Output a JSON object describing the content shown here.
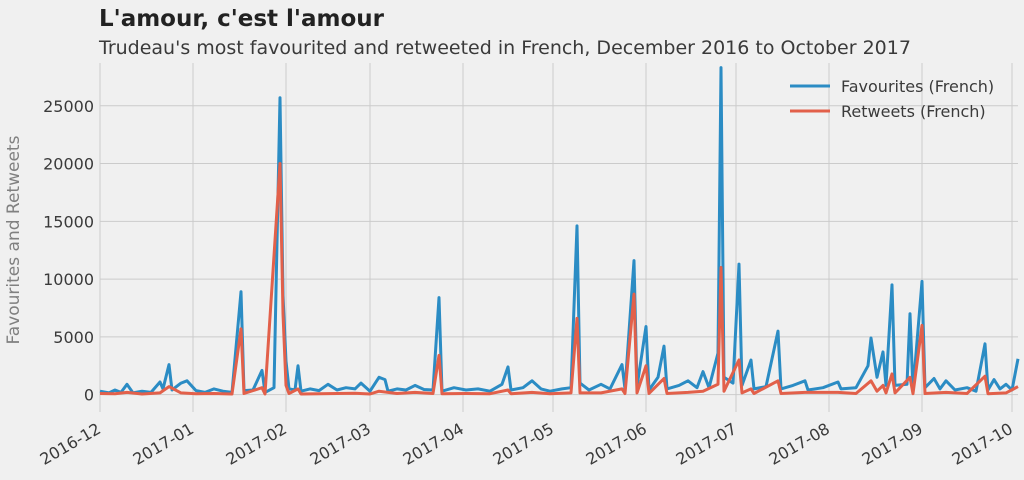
{
  "chart_data": {
    "type": "line",
    "title": "L'amour, c'est l'amour",
    "subtitle": "Trudeau's most favourited and retweeted in French, December 2016 to October 2017",
    "ylabel": "Favourites and Retweets",
    "xlabel": "",
    "xlim": [
      "2016-12-01",
      "2017-10-03"
    ],
    "ylim": [
      -1500,
      28700
    ],
    "yticks": [
      0,
      5000,
      10000,
      15000,
      20000,
      25000
    ],
    "ytick_labels": [
      "0",
      "5000",
      "10000",
      "15000",
      "20000",
      "25000"
    ],
    "xticks": [
      "2016-12-01",
      "2017-01-01",
      "2017-02-01",
      "2017-03-01",
      "2017-04-01",
      "2017-05-01",
      "2017-06-01",
      "2017-07-01",
      "2017-08-01",
      "2017-09-01",
      "2017-10-01"
    ],
    "xtick_labels": [
      "2016-12",
      "2017-01",
      "2017-02",
      "2017-03",
      "2017-04",
      "2017-05",
      "2017-06",
      "2017-07",
      "2017-08",
      "2017-09",
      "2017-10"
    ],
    "grid": true,
    "legend_position": "top-right",
    "series": [
      {
        "name": "Favourites (French)",
        "color": "#2b8cc4",
        "points": [
          [
            "2016-12-01",
            300
          ],
          [
            "2016-12-04",
            150
          ],
          [
            "2016-12-06",
            400
          ],
          [
            "2016-12-08",
            200
          ],
          [
            "2016-12-10",
            900
          ],
          [
            "2016-12-12",
            150
          ],
          [
            "2016-12-15",
            300
          ],
          [
            "2016-12-18",
            200
          ],
          [
            "2016-12-21",
            1100
          ],
          [
            "2016-12-22",
            500
          ],
          [
            "2016-12-24",
            2600
          ],
          [
            "2016-12-25",
            400
          ],
          [
            "2016-12-28",
            1000
          ],
          [
            "2016-12-30",
            1200
          ],
          [
            "2017-01-02",
            350
          ],
          [
            "2017-01-05",
            200
          ],
          [
            "2017-01-08",
            500
          ],
          [
            "2017-01-11",
            300
          ],
          [
            "2017-01-14",
            200
          ],
          [
            "2017-01-17",
            8900
          ],
          [
            "2017-01-18",
            350
          ],
          [
            "2017-01-21",
            400
          ],
          [
            "2017-01-24",
            2100
          ],
          [
            "2017-01-25",
            200
          ],
          [
            "2017-01-28",
            600
          ],
          [
            "2017-01-30",
            25700
          ],
          [
            "2017-01-31",
            8600
          ],
          [
            "2017-02-01",
            2900
          ],
          [
            "2017-02-02",
            500
          ],
          [
            "2017-02-04",
            400
          ],
          [
            "2017-02-05",
            2500
          ],
          [
            "2017-02-06",
            300
          ],
          [
            "2017-02-09",
            500
          ],
          [
            "2017-02-12",
            350
          ],
          [
            "2017-02-15",
            900
          ],
          [
            "2017-02-18",
            400
          ],
          [
            "2017-02-21",
            600
          ],
          [
            "2017-02-24",
            500
          ],
          [
            "2017-02-26",
            1000
          ],
          [
            "2017-03-01",
            300
          ],
          [
            "2017-03-04",
            1500
          ],
          [
            "2017-03-06",
            1300
          ],
          [
            "2017-03-07",
            300
          ],
          [
            "2017-03-10",
            500
          ],
          [
            "2017-03-13",
            400
          ],
          [
            "2017-03-16",
            800
          ],
          [
            "2017-03-19",
            450
          ],
          [
            "2017-03-22",
            400
          ],
          [
            "2017-03-24",
            8400
          ],
          [
            "2017-03-25",
            300
          ],
          [
            "2017-03-29",
            600
          ],
          [
            "2017-04-02",
            400
          ],
          [
            "2017-04-06",
            500
          ],
          [
            "2017-04-10",
            300
          ],
          [
            "2017-04-14",
            900
          ],
          [
            "2017-04-16",
            2400
          ],
          [
            "2017-04-17",
            400
          ],
          [
            "2017-04-21",
            600
          ],
          [
            "2017-04-24",
            1200
          ],
          [
            "2017-04-27",
            500
          ],
          [
            "2017-04-30",
            300
          ],
          [
            "2017-05-04",
            500
          ],
          [
            "2017-05-07",
            600
          ],
          [
            "2017-05-09",
            14600
          ],
          [
            "2017-05-10",
            1000
          ],
          [
            "2017-05-13",
            400
          ],
          [
            "2017-05-17",
            900
          ],
          [
            "2017-05-20",
            500
          ],
          [
            "2017-05-24",
            2600
          ],
          [
            "2017-05-25",
            500
          ],
          [
            "2017-05-28",
            11600
          ],
          [
            "2017-05-29",
            700
          ],
          [
            "2017-06-01",
            5900
          ],
          [
            "2017-06-02",
            400
          ],
          [
            "2017-06-05",
            1500
          ],
          [
            "2017-06-07",
            4200
          ],
          [
            "2017-06-08",
            500
          ],
          [
            "2017-06-12",
            800
          ],
          [
            "2017-06-15",
            1200
          ],
          [
            "2017-06-18",
            600
          ],
          [
            "2017-06-20",
            2000
          ],
          [
            "2017-06-22",
            600
          ],
          [
            "2017-06-25",
            3600
          ],
          [
            "2017-06-26",
            28300
          ],
          [
            "2017-06-27",
            1500
          ],
          [
            "2017-06-30",
            1000
          ],
          [
            "2017-07-02",
            11300
          ],
          [
            "2017-07-03",
            800
          ],
          [
            "2017-07-06",
            3000
          ],
          [
            "2017-07-07",
            500
          ],
          [
            "2017-07-11",
            700
          ],
          [
            "2017-07-15",
            5500
          ],
          [
            "2017-07-16",
            500
          ],
          [
            "2017-07-20",
            800
          ],
          [
            "2017-07-24",
            1200
          ],
          [
            "2017-07-25",
            400
          ],
          [
            "2017-07-30",
            600
          ],
          [
            "2017-08-04",
            1100
          ],
          [
            "2017-08-05",
            500
          ],
          [
            "2017-08-10",
            600
          ],
          [
            "2017-08-14",
            2500
          ],
          [
            "2017-08-15",
            4900
          ],
          [
            "2017-08-17",
            1500
          ],
          [
            "2017-08-19",
            3700
          ],
          [
            "2017-08-20",
            800
          ],
          [
            "2017-08-22",
            9500
          ],
          [
            "2017-08-23",
            800
          ],
          [
            "2017-08-27",
            900
          ],
          [
            "2017-08-28",
            7000
          ],
          [
            "2017-08-29",
            400
          ],
          [
            "2017-09-01",
            9800
          ],
          [
            "2017-09-02",
            600
          ],
          [
            "2017-09-05",
            1400
          ],
          [
            "2017-09-07",
            500
          ],
          [
            "2017-09-09",
            1200
          ],
          [
            "2017-09-12",
            400
          ],
          [
            "2017-09-16",
            600
          ],
          [
            "2017-09-19",
            300
          ],
          [
            "2017-09-22",
            4400
          ],
          [
            "2017-09-23",
            400
          ],
          [
            "2017-09-25",
            1300
          ],
          [
            "2017-09-27",
            500
          ],
          [
            "2017-09-29",
            900
          ],
          [
            "2017-10-01",
            400
          ],
          [
            "2017-10-03",
            3100
          ]
        ]
      },
      {
        "name": "Retweets (French)",
        "color": "#e2604a",
        "points": [
          [
            "2016-12-01",
            100
          ],
          [
            "2016-12-06",
            80
          ],
          [
            "2016-12-10",
            200
          ],
          [
            "2016-12-15",
            60
          ],
          [
            "2016-12-21",
            150
          ],
          [
            "2016-12-24",
            700
          ],
          [
            "2016-12-28",
            150
          ],
          [
            "2017-01-02",
            80
          ],
          [
            "2017-01-08",
            100
          ],
          [
            "2017-01-14",
            60
          ],
          [
            "2017-01-17",
            5700
          ],
          [
            "2017-01-18",
            100
          ],
          [
            "2017-01-24",
            600
          ],
          [
            "2017-01-25",
            60
          ],
          [
            "2017-01-30",
            20000
          ],
          [
            "2017-01-31",
            7000
          ],
          [
            "2017-02-01",
            800
          ],
          [
            "2017-02-02",
            100
          ],
          [
            "2017-02-05",
            500
          ],
          [
            "2017-02-06",
            60
          ],
          [
            "2017-02-12",
            80
          ],
          [
            "2017-02-18",
            100
          ],
          [
            "2017-02-24",
            120
          ],
          [
            "2017-03-01",
            60
          ],
          [
            "2017-03-04",
            300
          ],
          [
            "2017-03-10",
            100
          ],
          [
            "2017-03-16",
            200
          ],
          [
            "2017-03-22",
            100
          ],
          [
            "2017-03-24",
            3400
          ],
          [
            "2017-03-25",
            80
          ],
          [
            "2017-04-02",
            100
          ],
          [
            "2017-04-10",
            80
          ],
          [
            "2017-04-16",
            400
          ],
          [
            "2017-04-17",
            80
          ],
          [
            "2017-04-24",
            200
          ],
          [
            "2017-04-30",
            80
          ],
          [
            "2017-05-07",
            150
          ],
          [
            "2017-05-09",
            6600
          ],
          [
            "2017-05-10",
            150
          ],
          [
            "2017-05-17",
            150
          ],
          [
            "2017-05-24",
            500
          ],
          [
            "2017-05-25",
            100
          ],
          [
            "2017-05-28",
            8700
          ],
          [
            "2017-05-29",
            150
          ],
          [
            "2017-06-01",
            2500
          ],
          [
            "2017-06-02",
            100
          ],
          [
            "2017-06-07",
            1400
          ],
          [
            "2017-06-08",
            100
          ],
          [
            "2017-06-15",
            200
          ],
          [
            "2017-06-20",
            300
          ],
          [
            "2017-06-25",
            900
          ],
          [
            "2017-06-26",
            11000
          ],
          [
            "2017-06-27",
            300
          ],
          [
            "2017-07-02",
            3000
          ],
          [
            "2017-07-03",
            150
          ],
          [
            "2017-07-06",
            500
          ],
          [
            "2017-07-07",
            100
          ],
          [
            "2017-07-15",
            1200
          ],
          [
            "2017-07-16",
            100
          ],
          [
            "2017-07-24",
            200
          ],
          [
            "2017-08-04",
            200
          ],
          [
            "2017-08-10",
            100
          ],
          [
            "2017-08-15",
            1200
          ],
          [
            "2017-08-17",
            300
          ],
          [
            "2017-08-19",
            800
          ],
          [
            "2017-08-20",
            150
          ],
          [
            "2017-08-22",
            1800
          ],
          [
            "2017-08-23",
            150
          ],
          [
            "2017-08-28",
            1500
          ],
          [
            "2017-08-29",
            80
          ],
          [
            "2017-09-01",
            6000
          ],
          [
            "2017-09-02",
            100
          ],
          [
            "2017-09-09",
            200
          ],
          [
            "2017-09-16",
            100
          ],
          [
            "2017-09-22",
            1600
          ],
          [
            "2017-09-23",
            80
          ],
          [
            "2017-09-29",
            150
          ],
          [
            "2017-10-03",
            700
          ]
        ]
      }
    ]
  }
}
